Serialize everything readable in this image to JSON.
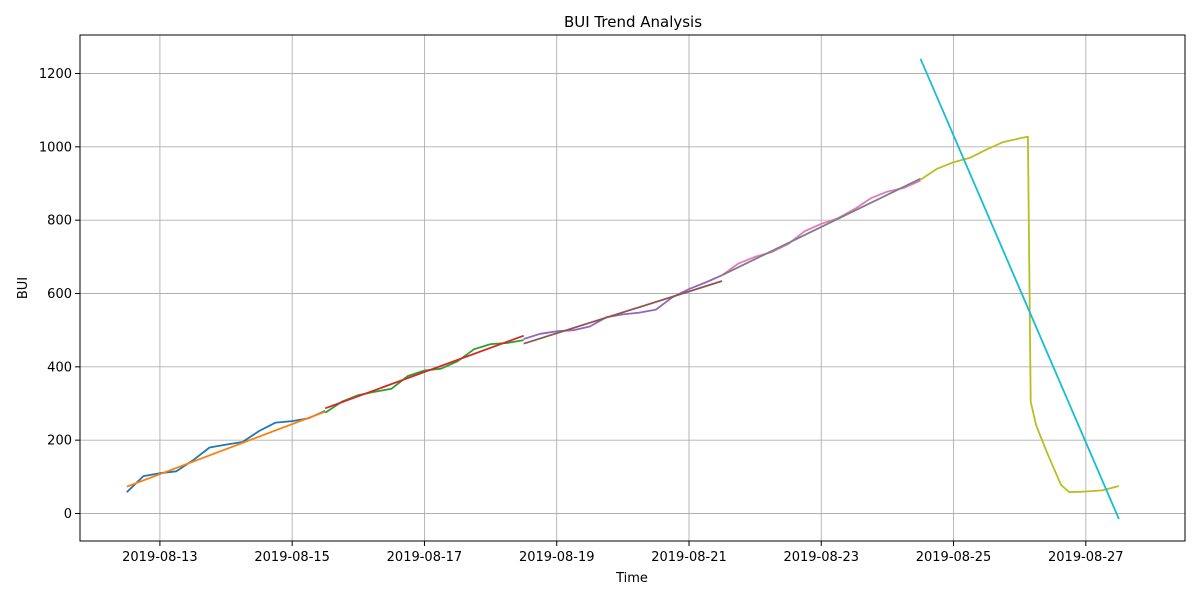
{
  "chart_data": {
    "type": "line",
    "title": "BUI Trend Analysis",
    "xlabel": "Time",
    "ylabel": "BUI",
    "xlim": [
      "2019-08-11 19:00",
      "2019-08-28 12:00"
    ],
    "ylim": [
      -75,
      1305
    ],
    "x_ticks": [
      "2019-08-13",
      "2019-08-15",
      "2019-08-17",
      "2019-08-19",
      "2019-08-21",
      "2019-08-23",
      "2019-08-25",
      "2019-08-27"
    ],
    "y_ticks": [
      0,
      200,
      400,
      600,
      800,
      1000,
      1200
    ],
    "grid": true,
    "series": [
      {
        "color": "#1f77b4",
        "x": [
          "2019-08-12 12:00",
          "2019-08-12 18:00",
          "2019-08-13 00:00",
          "2019-08-13 06:00",
          "2019-08-13 12:00",
          "2019-08-13 18:00",
          "2019-08-14 00:00",
          "2019-08-14 06:00",
          "2019-08-14 12:00",
          "2019-08-14 18:00",
          "2019-08-15 00:00",
          "2019-08-15 06:00",
          "2019-08-15 12:00"
        ],
        "y": [
          58,
          102,
          110,
          115,
          145,
          180,
          188,
          195,
          225,
          248,
          252,
          260,
          280
        ]
      },
      {
        "color": "#ff7f0e",
        "x": [
          "2019-08-12 12:00",
          "2019-08-15 12:00"
        ],
        "y": [
          73,
          278
        ]
      },
      {
        "color": "#2ca02c",
        "x": [
          "2019-08-15 12:00",
          "2019-08-15 18:00",
          "2019-08-16 00:00",
          "2019-08-16 06:00",
          "2019-08-16 12:00",
          "2019-08-16 18:00",
          "2019-08-17 00:00",
          "2019-08-17 06:00",
          "2019-08-17 12:00",
          "2019-08-17 18:00",
          "2019-08-18 00:00",
          "2019-08-18 06:00",
          "2019-08-18 12:00"
        ],
        "y": [
          275,
          305,
          323,
          332,
          340,
          375,
          390,
          395,
          415,
          448,
          462,
          465,
          473
        ]
      },
      {
        "color": "#d62728",
        "x": [
          "2019-08-15 12:00",
          "2019-08-18 12:00"
        ],
        "y": [
          287,
          485
        ]
      },
      {
        "color": "#9467bd",
        "x": [
          "2019-08-18 12:00",
          "2019-08-18 18:00",
          "2019-08-19 00:00",
          "2019-08-19 06:00",
          "2019-08-19 12:00",
          "2019-08-19 18:00",
          "2019-08-20 00:00",
          "2019-08-20 06:00",
          "2019-08-20 12:00",
          "2019-08-20 18:00",
          "2019-08-21 00:00",
          "2019-08-21 06:00",
          "2019-08-21 12:00"
        ],
        "y": [
          476,
          490,
          497,
          500,
          510,
          535,
          543,
          548,
          556,
          590,
          612,
          630,
          650
        ]
      },
      {
        "color": "#8c564b",
        "x": [
          "2019-08-18 12:00",
          "2019-08-21 12:00"
        ],
        "y": [
          463,
          634
        ]
      },
      {
        "color": "#e377c2",
        "x": [
          "2019-08-21 12:00",
          "2019-08-21 18:00",
          "2019-08-22 00:00",
          "2019-08-22 06:00",
          "2019-08-22 12:00",
          "2019-08-22 18:00",
          "2019-08-23 00:00",
          "2019-08-23 06:00",
          "2019-08-23 12:00",
          "2019-08-23 18:00",
          "2019-08-24 00:00",
          "2019-08-24 06:00",
          "2019-08-24 12:00"
        ],
        "y": [
          650,
          682,
          700,
          713,
          735,
          770,
          790,
          805,
          830,
          860,
          878,
          888,
          908
        ]
      },
      {
        "color": "#7f7f7f",
        "x": [
          "2019-08-21 12:00",
          "2019-08-24 12:00"
        ],
        "y": [
          650,
          913
        ]
      },
      {
        "color": "#bcbd22",
        "x": [
          "2019-08-24 12:00",
          "2019-08-24 18:00",
          "2019-08-25 00:00",
          "2019-08-25 06:00",
          "2019-08-25 12:00",
          "2019-08-25 18:00",
          "2019-08-26 00:00",
          "2019-08-26 03:00",
          "2019-08-26 04:00",
          "2019-08-26 06:00",
          "2019-08-26 10:00",
          "2019-08-26 12:00",
          "2019-08-26 15:00",
          "2019-08-26 18:00",
          "2019-08-27 00:00",
          "2019-08-27 06:00",
          "2019-08-27 12:00"
        ],
        "y": [
          910,
          940,
          958,
          970,
          993,
          1013,
          1023,
          1028,
          305,
          240,
          165,
          130,
          78,
          58,
          60,
          63,
          75
        ]
      },
      {
        "color": "#17becf",
        "x": [
          "2019-08-24 12:00",
          "2019-08-27 12:00"
        ],
        "y": [
          1240,
          -15
        ]
      }
    ]
  }
}
